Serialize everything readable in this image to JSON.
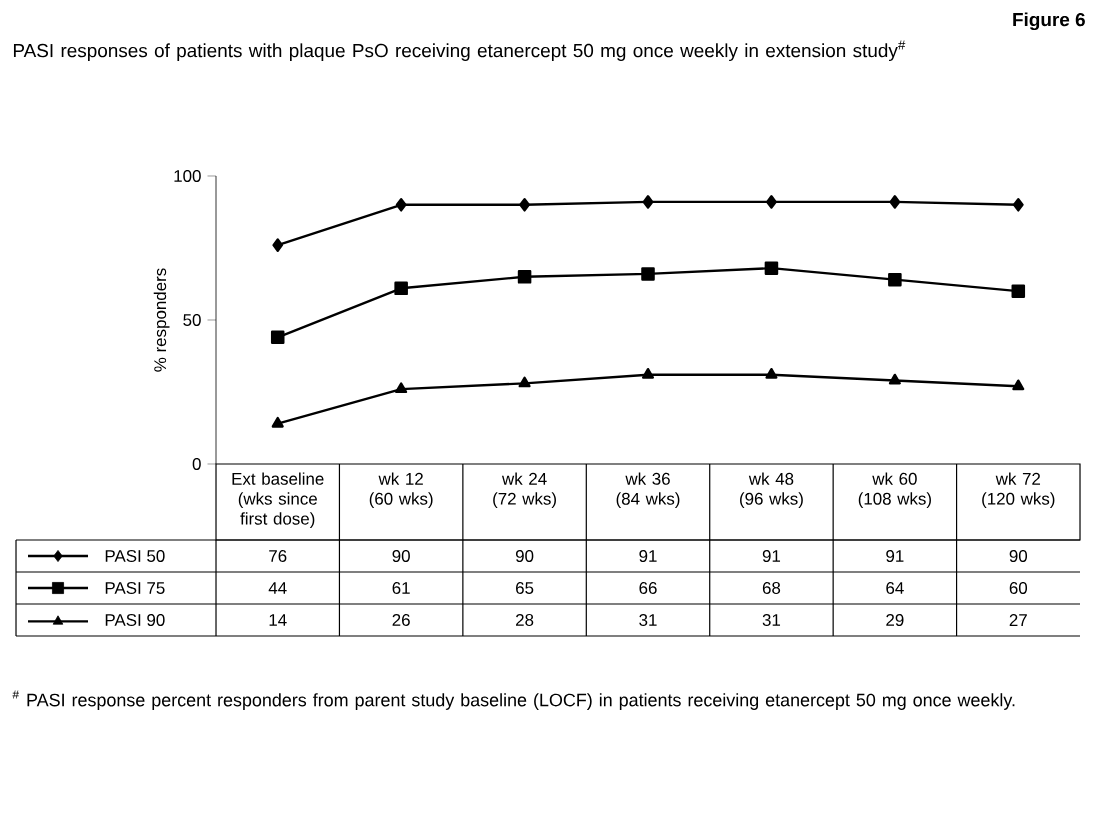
{
  "chart_data": {
    "type": "line",
    "title": "PASI responses of patients with plaque PsO receiving etanercept 50 mg once weekly in extension study$^{#}$",
    "ylabel": "% responders",
    "annotations": [
      "Figure 6",
      "$^{#}$ PASI response percent responders from parent study baseline (LOCF) in patients receiving etanercept 50 mg once weekly."
    ],
    "categories": [
      "Ext baseline (wks since first dose)",
      "wk 12 (60 wks)",
      "wk 24 (72 wks)",
      "wk 36 (84 wks)",
      "wk 48 (96 wks)",
      "wk 60 (108 wks)",
      "wk 72 (120 wks)"
    ],
    "series": [
      {
        "name": "PASI 50",
        "color": "#000000",
        "marker": "diamond",
        "values": [
          76,
          90,
          90,
          91,
          91,
          91,
          90
        ]
      },
      {
        "name": "PASI 75",
        "color": "#000000",
        "marker": "square",
        "values": [
          44,
          61,
          65,
          66,
          68,
          64,
          60
        ]
      },
      {
        "name": "PASI 90",
        "color": "#000000",
        "marker": "triangle",
        "values": [
          14,
          26,
          28,
          31,
          31,
          29,
          27
        ]
      }
    ],
    "ylim": [
      0,
      100
    ],
    "yticks": [
      0,
      50,
      100
    ],
    "data_labels": true,
    "legend": "bottom",
    "grid": false,
    "line_style": "solid"
  }
}
